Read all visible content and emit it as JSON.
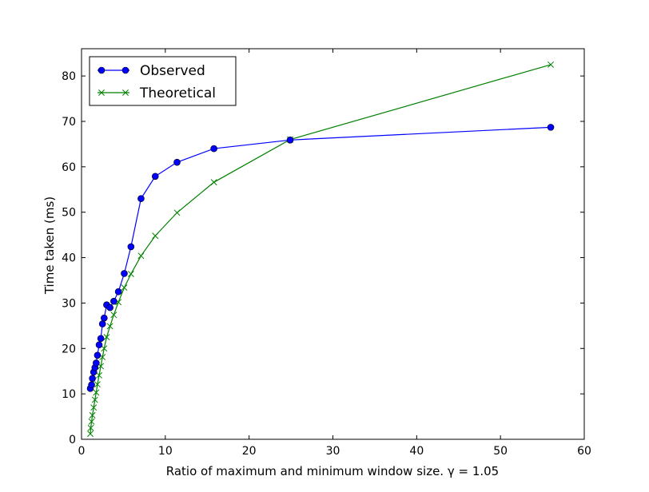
{
  "chart_data": {
    "type": "line",
    "title": "",
    "xlabel": "Ratio of maximum and minimum window size. γ = 1.05",
    "ylabel": "Time taken (ms)",
    "xlim": [
      0,
      60
    ],
    "ylim": [
      0,
      86
    ],
    "xticks": [
      0,
      10,
      20,
      30,
      40,
      50,
      60
    ],
    "yticks": [
      0,
      10,
      20,
      30,
      40,
      50,
      60,
      70,
      80
    ],
    "grid": false,
    "legend_position": "top-left",
    "series": [
      {
        "name": "Observed",
        "color": "#0000ff",
        "marker": "circle",
        "x": [
          1.05,
          1.2,
          1.3,
          1.45,
          1.6,
          1.75,
          1.9,
          2.1,
          2.3,
          2.5,
          2.7,
          3.0,
          3.4,
          3.85,
          4.4,
          5.1,
          5.9,
          7.1,
          8.8,
          11.4,
          15.8,
          24.9,
          56.0
        ],
        "y": [
          11.2,
          12.0,
          13.4,
          14.8,
          15.8,
          16.8,
          18.5,
          20.8,
          22.2,
          25.4,
          26.7,
          29.6,
          29.0,
          30.4,
          32.5,
          36.5,
          42.4,
          53.0,
          57.9,
          61.0,
          64.0,
          65.9,
          68.7
        ]
      },
      {
        "name": "Theoretical",
        "color": "#008000",
        "marker": "x",
        "x": [
          1.05,
          1.1,
          1.2,
          1.3,
          1.45,
          1.6,
          1.75,
          1.9,
          2.1,
          2.3,
          2.5,
          2.7,
          3.0,
          3.4,
          3.85,
          4.4,
          5.1,
          5.9,
          7.1,
          8.8,
          11.4,
          15.8,
          24.9,
          56.0
        ],
        "y": [
          1.2,
          2.5,
          3.9,
          5.3,
          7.0,
          8.7,
          10.3,
          12.1,
          14.1,
          16.1,
          18.1,
          20.0,
          22.5,
          24.9,
          27.4,
          30.2,
          33.4,
          36.4,
          40.4,
          44.8,
          49.9,
          56.6,
          66.0,
          82.5
        ]
      }
    ]
  }
}
